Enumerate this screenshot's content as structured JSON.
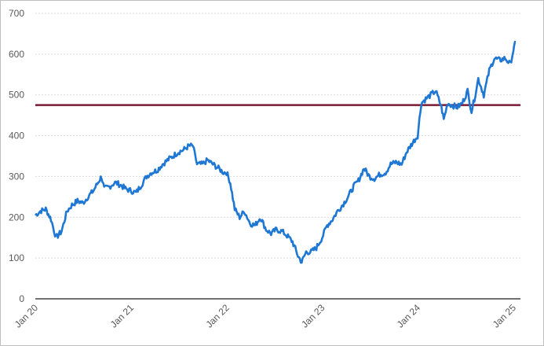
{
  "chart_data": {
    "type": "line",
    "title": "",
    "xlabel": "",
    "ylabel": "",
    "ylim": [
      0,
      700
    ],
    "yticks": [
      "0",
      "100",
      "200",
      "300",
      "400",
      "500",
      "600",
      "700"
    ],
    "xticks": [
      {
        "label": "Jan 20",
        "date": "2020-01-01"
      },
      {
        "label": "Jan 21",
        "date": "2021-01-01"
      },
      {
        "label": "Jan 22",
        "date": "2022-01-01"
      },
      {
        "label": "Jan 23",
        "date": "2023-01-01"
      },
      {
        "label": "Jan 24",
        "date": "2024-01-01"
      },
      {
        "label": "Jan 25",
        "date": "2025-01-01"
      }
    ],
    "xlim": [
      "2020-01-01",
      "2025-01-01"
    ],
    "grid": true,
    "series": [
      {
        "color": "#1f77d4",
        "x": [
          "2020-01-01",
          "2020-01-20",
          "2020-02-10",
          "2020-03-01",
          "2020-03-20",
          "2020-04-10",
          "2020-05-01",
          "2020-05-20",
          "2020-06-10",
          "2020-07-01",
          "2020-07-20",
          "2020-08-10",
          "2020-09-01",
          "2020-09-10",
          "2020-09-20",
          "2020-10-10",
          "2020-11-01",
          "2020-11-20",
          "2020-12-10",
          "2021-01-01",
          "2021-01-20",
          "2021-02-10",
          "2021-03-01",
          "2021-03-20",
          "2021-04-10",
          "2021-05-01",
          "2021-05-20",
          "2021-06-10",
          "2021-07-01",
          "2021-07-20",
          "2021-08-10",
          "2021-08-25",
          "2021-09-10",
          "2021-10-01",
          "2021-10-20",
          "2021-11-10",
          "2021-12-01",
          "2021-12-20",
          "2022-01-01",
          "2022-01-15",
          "2022-02-01",
          "2022-02-20",
          "2022-03-10",
          "2022-04-01",
          "2022-04-20",
          "2022-05-10",
          "2022-06-01",
          "2022-06-20",
          "2022-07-10",
          "2022-08-01",
          "2022-08-20",
          "2022-09-10",
          "2022-10-01",
          "2022-10-15",
          "2022-11-01",
          "2022-11-20",
          "2022-12-10",
          "2023-01-01",
          "2023-01-20",
          "2023-02-10",
          "2023-03-01",
          "2023-03-20",
          "2023-04-10",
          "2023-05-01",
          "2023-05-20",
          "2023-06-10",
          "2023-07-01",
          "2023-07-20",
          "2023-08-10",
          "2023-09-01",
          "2023-09-20",
          "2023-10-10",
          "2023-11-01",
          "2023-11-20",
          "2023-12-10",
          "2024-01-01",
          "2024-01-15",
          "2024-02-01",
          "2024-02-20",
          "2024-03-10",
          "2024-04-01",
          "2024-04-10",
          "2024-04-25",
          "2024-05-10",
          "2024-06-01",
          "2024-06-20",
          "2024-07-10",
          "2024-07-25",
          "2024-08-05",
          "2024-08-20",
          "2024-09-10",
          "2024-10-01",
          "2024-10-20",
          "2024-11-10",
          "2024-12-01",
          "2024-12-20",
          "2025-01-01",
          "2025-01-10"
        ],
        "values": [
          205,
          215,
          220,
          195,
          150,
          165,
          215,
          230,
          240,
          235,
          250,
          265,
          290,
          300,
          270,
          275,
          285,
          280,
          270,
          265,
          260,
          280,
          300,
          310,
          315,
          330,
          340,
          350,
          360,
          365,
          375,
          375,
          330,
          330,
          340,
          330,
          320,
          310,
          310,
          285,
          220,
          200,
          215,
          185,
          180,
          200,
          170,
          160,
          170,
          165,
          155,
          140,
          105,
          90,
          115,
          115,
          125,
          150,
          180,
          195,
          215,
          230,
          250,
          275,
          290,
          320,
          300,
          295,
          305,
          310,
          330,
          335,
          330,
          360,
          380,
          400,
          480,
          490,
          500,
          510,
          470,
          440,
          480,
          475,
          470,
          480,
          510,
          460,
          490,
          540,
          500,
          560,
          590,
          585,
          590,
          575,
          610,
          630
        ]
      }
    ],
    "reference_line": {
      "value": 475,
      "color": "#7b1a35"
    }
  }
}
